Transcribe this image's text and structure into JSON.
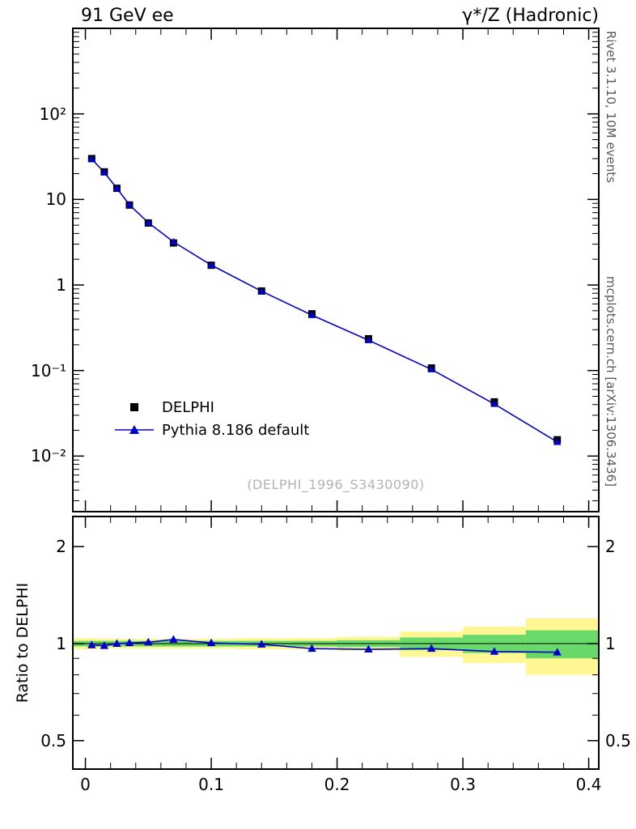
{
  "header": {
    "title_left": "91 GeV ee",
    "title_right": "γ*/Z (Hadronic)"
  },
  "side_notes": {
    "top": "Rivet 3.1.10,  10M events",
    "bottom": "mcplots.cern.ch [arXiv:1306.3436]"
  },
  "watermark": "(DELPHI_1996_S3430090)",
  "ratio_axis_title": "Ratio to DELPHI",
  "legend": [
    {
      "label": "DELPHI",
      "marker": "square",
      "color": "#000000"
    },
    {
      "label": "Pythia 8.186 default",
      "marker": "triangle-line",
      "color": "#0000cd"
    }
  ],
  "colors": {
    "mc_blue": "#0000cd",
    "data_black": "#000000",
    "band_yellow": "#fff793",
    "band_green": "#69d969",
    "frame": "#000000",
    "watermark_gray": "#b3b3b3",
    "note_gray": "#595959"
  },
  "chart_data": [
    {
      "type": "line",
      "panel": "main",
      "yscale": "log",
      "xlim": [
        -0.01,
        0.408
      ],
      "ylim": [
        0.00224,
        1000
      ],
      "x": [
        0.005,
        0.015,
        0.025,
        0.035,
        0.05,
        0.07,
        0.1,
        0.14,
        0.18,
        0.225,
        0.275,
        0.325,
        0.375
      ],
      "series": [
        {
          "name": "DELPHI",
          "marker": "square",
          "color": "#000000",
          "values": [
            30,
            21,
            13.5,
            8.6,
            5.3,
            3.1,
            1.7,
            0.85,
            0.46,
            0.235,
            0.107,
            0.043,
            0.0155
          ]
        },
        {
          "name": "Pythia 8.186 default",
          "marker": "triangle",
          "color": "#0000cd",
          "values": [
            29.7,
            20.7,
            13.5,
            8.64,
            5.35,
            3.19,
            1.71,
            0.846,
            0.444,
            0.226,
            0.103,
            0.0406,
            0.0146
          ]
        }
      ],
      "yticks": [
        {
          "v": 100,
          "label": "10²"
        },
        {
          "v": 10,
          "label": "10"
        },
        {
          "v": 1,
          "label": "1"
        },
        {
          "v": 0.1,
          "label": "10⁻¹"
        },
        {
          "v": 0.01,
          "label": "10⁻²"
        }
      ],
      "xticks": [
        {
          "v": 0,
          "label": "0"
        },
        {
          "v": 0.1,
          "label": "0.1"
        },
        {
          "v": 0.2,
          "label": "0.2"
        },
        {
          "v": 0.3,
          "label": "0.3"
        },
        {
          "v": 0.4,
          "label": "0.4"
        }
      ]
    },
    {
      "type": "line",
      "panel": "ratio",
      "yscale": "log",
      "ylim": [
        0.408,
        2.48
      ],
      "x": [
        0.005,
        0.015,
        0.025,
        0.035,
        0.05,
        0.07,
        0.1,
        0.14,
        0.18,
        0.225,
        0.275,
        0.325,
        0.375
      ],
      "values": [
        0.99,
        0.985,
        1.0,
        1.005,
        1.01,
        1.03,
        1.005,
        0.995,
        0.965,
        0.96,
        0.965,
        0.945,
        0.94
      ],
      "bands": {
        "bin_edges": [
          0,
          0.01,
          0.02,
          0.03,
          0.04,
          0.06,
          0.08,
          0.12,
          0.16,
          0.2,
          0.25,
          0.3,
          0.35,
          0.4
        ],
        "yellow_lo": [
          0.96,
          0.965,
          0.965,
          0.965,
          0.965,
          0.965,
          0.965,
          0.96,
          0.96,
          0.95,
          0.91,
          0.87,
          0.8
        ],
        "yellow_hi": [
          1.04,
          1.035,
          1.035,
          1.035,
          1.035,
          1.035,
          1.035,
          1.04,
          1.04,
          1.05,
          1.09,
          1.13,
          1.2
        ],
        "green_lo": [
          0.98,
          0.98,
          0.98,
          0.98,
          0.98,
          0.98,
          0.98,
          0.98,
          0.98,
          0.975,
          0.955,
          0.935,
          0.9
        ],
        "green_hi": [
          1.02,
          1.02,
          1.02,
          1.02,
          1.02,
          1.02,
          1.02,
          1.02,
          1.02,
          1.025,
          1.045,
          1.065,
          1.1
        ]
      },
      "yticks": [
        {
          "v": 2,
          "label": "2"
        },
        {
          "v": 1,
          "label": "1"
        },
        {
          "v": 0.5,
          "label": "0.5"
        }
      ]
    }
  ]
}
